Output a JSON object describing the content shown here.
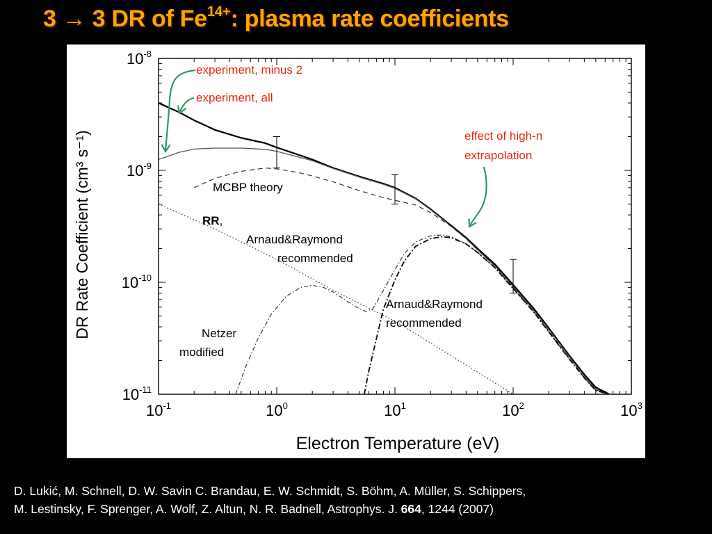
{
  "slide": {
    "title_main": "3 → 3 DR of Fe",
    "title_sup": "14+",
    "title_rest": ": plasma rate coefficients"
  },
  "citation": {
    "line1": "D. Lukić, M. Schnell, D. W. Savin C. Brandau, E. W. Schmidt, S. Böhm, A. Müller, S. Schippers,",
    "line2_pre": "M. Lestinsky, F. Sprenger, A. Wolf, Z. Altun, N. R. Badnell, Astrophys. J. ",
    "line2_vol": "664",
    "line2_post": ",  1244 (2007)"
  },
  "chart_data": {
    "type": "line",
    "xlabel": "Electron Temperature (eV)",
    "ylabel": "DR Rate Coefficient (cm³ s⁻¹)",
    "xlog": true,
    "ylog": true,
    "xlim": [
      0.1,
      1000
    ],
    "ylim": [
      1e-11,
      1e-08
    ],
    "x_ticks": [
      {
        "value": 0.1,
        "base": "10",
        "exp": "-1"
      },
      {
        "value": 1,
        "base": "10",
        "exp": "0"
      },
      {
        "value": 10,
        "base": "10",
        "exp": "1"
      },
      {
        "value": 100,
        "base": "10",
        "exp": "2"
      },
      {
        "value": 1000,
        "base": "10",
        "exp": "3"
      }
    ],
    "y_ticks": [
      {
        "value": 1e-11,
        "base": "10",
        "exp": "-11"
      },
      {
        "value": 1e-10,
        "base": "10",
        "exp": "-10"
      },
      {
        "value": 1e-09,
        "base": "10",
        "exp": "-9"
      },
      {
        "value": 1e-08,
        "base": "10",
        "exp": "-8"
      }
    ],
    "series": [
      {
        "name": "experiment, all",
        "style": "solid-thick",
        "x": [
          0.1,
          0.15,
          0.2,
          0.3,
          0.5,
          0.8,
          1,
          2,
          3,
          5,
          8,
          10,
          15,
          20,
          30,
          40,
          50,
          70,
          100,
          150,
          200,
          300,
          400,
          500,
          650
        ],
        "y": [
          4e-09,
          3.3e-09,
          2.8e-09,
          2.3e-09,
          1.95e-09,
          1.75e-09,
          1.6e-09,
          1.25e-09,
          1.05e-09,
          8.8e-10,
          7.6e-10,
          7e-10,
          5.6e-10,
          4.5e-10,
          3.2e-10,
          2.5e-10,
          2e-10,
          1.45e-10,
          9.5e-11,
          5.8e-11,
          3.9e-11,
          2.2e-11,
          1.5e-11,
          1.15e-11,
          1e-11
        ]
      },
      {
        "name": "experiment, minus 2",
        "style": "solid-thin",
        "x": [
          0.1,
          0.15,
          0.2,
          0.3,
          0.5,
          0.8,
          1,
          2,
          3,
          5,
          8,
          10,
          15,
          20,
          30,
          40,
          50,
          70,
          100,
          150,
          200,
          300,
          400,
          500,
          650
        ],
        "y": [
          1.25e-09,
          1.45e-09,
          1.55e-09,
          1.58e-09,
          1.58e-09,
          1.54e-09,
          1.48e-09,
          1.22e-09,
          1.04e-09,
          8.7e-10,
          7.5e-10,
          6.9e-10,
          5.55e-10,
          4.45e-10,
          3.15e-10,
          2.45e-10,
          1.95e-10,
          1.4e-10,
          9.2e-11,
          5.6e-11,
          3.8e-11,
          2.15e-11,
          1.45e-11,
          1.1e-11,
          1e-11
        ]
      },
      {
        "name": "MCBP theory",
        "style": "dashed",
        "x": [
          0.2,
          0.3,
          0.5,
          0.8,
          1,
          1.5,
          2,
          3,
          5,
          8,
          10,
          15,
          20,
          30,
          40,
          50,
          70,
          100,
          150,
          200,
          300,
          400,
          500,
          650
        ],
        "y": [
          7e-10,
          8.5e-10,
          9.8e-10,
          1.05e-09,
          1.03e-09,
          9.6e-10,
          8.9e-10,
          7.9e-10,
          6.6e-10,
          5.7e-10,
          5.4e-10,
          4.9e-10,
          4.2e-10,
          3.15e-10,
          2.45e-10,
          1.95e-10,
          1.4e-10,
          9e-11,
          5.5e-11,
          3.7e-11,
          2.1e-11,
          1.4e-11,
          1.1e-11,
          1e-11
        ]
      },
      {
        "name": "RR, Arnaud&Raymond recommended",
        "style": "dotted",
        "x": [
          0.1,
          0.3,
          1,
          3,
          10,
          30,
          100
        ],
        "y": [
          5e-10,
          3e-10,
          1.6e-10,
          8.5e-11,
          4.5e-11,
          2.2e-11,
          1e-11
        ]
      },
      {
        "name": "Netzer modified",
        "style": "dash-dot",
        "x": [
          0.45,
          0.55,
          0.7,
          0.9,
          1.2,
          1.6,
          2,
          2.5,
          3,
          4,
          5,
          5.7,
          6.5,
          8,
          10,
          12,
          15,
          20,
          25,
          30,
          40,
          50,
          70,
          100,
          150,
          200,
          300,
          400,
          500,
          650
        ],
        "y": [
          1e-11,
          1.8e-11,
          3.2e-11,
          5.2e-11,
          7.5e-11,
          9e-11,
          9.4e-11,
          9e-11,
          8.2e-11,
          6.7e-11,
          5.8e-11,
          5.5e-11,
          5.8e-11,
          8.5e-11,
          1.3e-10,
          1.8e-10,
          2.3e-10,
          2.6e-10,
          2.65e-10,
          2.55e-10,
          2.2e-10,
          1.85e-10,
          1.35e-10,
          8.8e-11,
          5.4e-11,
          3.6e-11,
          2.05e-11,
          1.4e-11,
          1.08e-11,
          1e-11
        ]
      },
      {
        "name": "Arnaud&Raymond recommended",
        "style": "dash-dot-thick",
        "x": [
          5.5,
          6,
          7,
          8,
          10,
          12,
          15,
          20,
          25,
          30,
          40,
          50,
          70,
          100,
          150,
          200,
          300,
          400,
          500,
          650
        ],
        "y": [
          1e-11,
          1.6e-11,
          3.2e-11,
          5.8e-11,
          1.05e-10,
          1.55e-10,
          2.1e-10,
          2.45e-10,
          2.55e-10,
          2.5e-10,
          2.2e-10,
          1.85e-10,
          1.35e-10,
          8.8e-11,
          5.4e-11,
          3.6e-11,
          2.05e-11,
          1.4e-11,
          1.08e-11,
          1e-11
        ]
      }
    ],
    "error_bars": [
      {
        "x": 1,
        "y": 1.5e-09,
        "ylow": 1.05e-09,
        "yhigh": 2e-09
      },
      {
        "x": 10,
        "y": 7e-10,
        "ylow": 5e-10,
        "yhigh": 9.2e-10
      },
      {
        "x": 100,
        "y": 1.25e-10,
        "ylow": 8e-11,
        "yhigh": 1.6e-10
      }
    ],
    "annotations": [
      {
        "key": "exp_minus2",
        "text": "experiment, minus 2",
        "color": "#e8280c"
      },
      {
        "key": "exp_all",
        "text": "experiment, all",
        "color": "#e8280c"
      },
      {
        "key": "highn_1",
        "text": "effect of high-n",
        "color": "#e8280c"
      },
      {
        "key": "highn_2",
        "text": "extrapolation",
        "color": "#e8280c"
      },
      {
        "key": "mcbp",
        "text": "MCBP theory",
        "color": "#000000"
      },
      {
        "key": "rr_bold",
        "text": "RR",
        "color": "#000000"
      },
      {
        "key": "rr_comma",
        "text": ",",
        "color": "#000000"
      },
      {
        "key": "rr_2",
        "text": "Arnaud&Raymond",
        "color": "#000000"
      },
      {
        "key": "rr_3",
        "text": "recommended",
        "color": "#000000"
      },
      {
        "key": "ar_1",
        "text": "Arnaud&Raymond",
        "color": "#000000"
      },
      {
        "key": "ar_2",
        "text": "recommended",
        "color": "#000000"
      },
      {
        "key": "netzer_1",
        "text": "Netzer",
        "color": "#000000"
      },
      {
        "key": "netzer_2",
        "text": "modified",
        "color": "#000000"
      }
    ],
    "arrow_color": "#2f9a63",
    "grid": false
  }
}
